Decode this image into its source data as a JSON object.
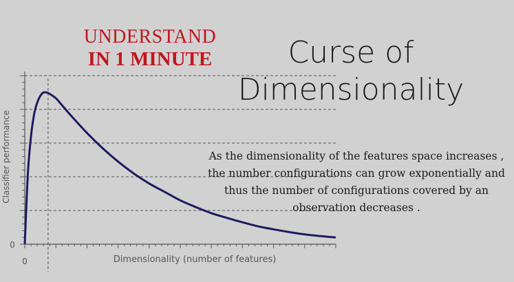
{
  "badge": {
    "line1": "UNDERSTAND",
    "line2": "IN 1 MINUTE"
  },
  "title": {
    "line1": "Curse of",
    "line2": "Dimensionality"
  },
  "description": "As the dimensionality of the features space increases , the number configurations can grow exponentially and thus the number of configurations covered by an observation decreases .",
  "colors": {
    "background": "#d1d1d1",
    "curve": "#1c1a5e",
    "badge": "#c0171d",
    "axis": "#555555",
    "text": "#1a1a1a"
  },
  "chart_data": {
    "type": "line",
    "title": "",
    "xlabel": "Dimensionality (number of features)",
    "ylabel": "Classifier performance",
    "x_tick_label": "0",
    "y_tick_label": "0",
    "xlim": [
      0,
      10
    ],
    "ylim": [
      0,
      5
    ],
    "grid": "dashed horizontal lines at each y major tick, dashed vertical line at the peak",
    "series": [
      {
        "points": [
          [
            0,
            0
          ],
          [
            0.1,
            2.1
          ],
          [
            0.2,
            3.2
          ],
          [
            0.3,
            3.85
          ],
          [
            0.4,
            4.2
          ],
          [
            0.5,
            4.4
          ],
          [
            0.6,
            4.5
          ],
          [
            0.7,
            4.5
          ],
          [
            0.8,
            4.46
          ],
          [
            1.0,
            4.33
          ],
          [
            1.2,
            4.12
          ],
          [
            1.5,
            3.8
          ],
          [
            2.0,
            3.3
          ],
          [
            2.5,
            2.85
          ],
          [
            3.0,
            2.45
          ],
          [
            3.5,
            2.1
          ],
          [
            4.0,
            1.8
          ],
          [
            4.5,
            1.55
          ],
          [
            5.0,
            1.3
          ],
          [
            5.5,
            1.1
          ],
          [
            6.0,
            0.92
          ],
          [
            6.5,
            0.78
          ],
          [
            7.0,
            0.65
          ],
          [
            7.5,
            0.53
          ],
          [
            8.0,
            0.44
          ],
          [
            8.5,
            0.36
          ],
          [
            9.0,
            0.29
          ],
          [
            9.5,
            0.24
          ],
          [
            10.0,
            0.2
          ]
        ]
      }
    ],
    "peak_x": 0.75
  }
}
